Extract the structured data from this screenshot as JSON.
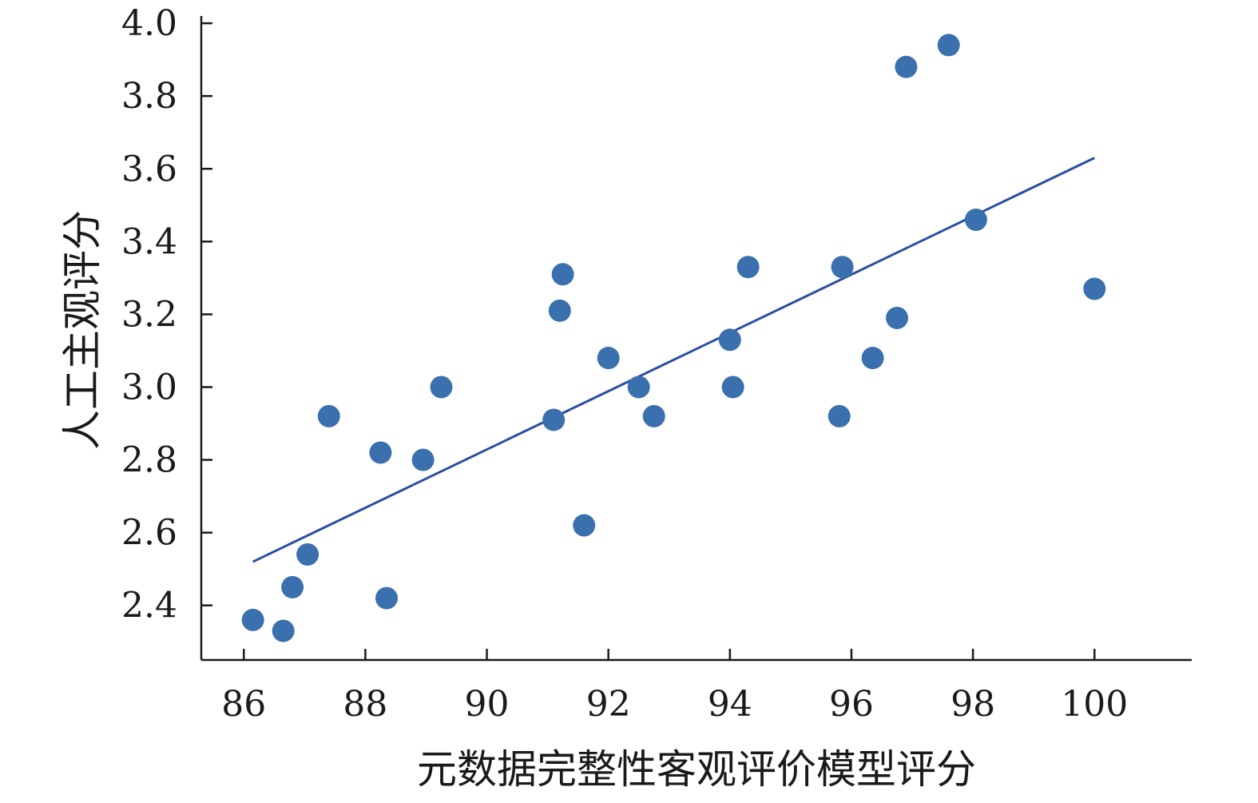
{
  "chart_data": {
    "type": "scatter",
    "xlabel": "元数据完整性客观评价模型评分",
    "ylabel": "人工主观评分",
    "xlim": [
      85.3,
      101.6
    ],
    "ylim": [
      2.25,
      4.02
    ],
    "x_ticks": [
      "86",
      "88",
      "90",
      "92",
      "94",
      "96",
      "98",
      "100"
    ],
    "y_ticks": [
      "2.4",
      "2.6",
      "2.8",
      "3.0",
      "3.2",
      "3.4",
      "3.6",
      "3.8",
      "4.0"
    ],
    "grid": false,
    "legend": "none",
    "colors": {
      "points": "#3a70ae",
      "trendline": "#2b4ea0",
      "axis": "#1a1a1a"
    },
    "series": [
      {
        "points": [
          {
            "x": 86.15,
            "y": 2.36
          },
          {
            "x": 86.65,
            "y": 2.33
          },
          {
            "x": 86.8,
            "y": 2.45
          },
          {
            "x": 87.05,
            "y": 2.54
          },
          {
            "x": 87.4,
            "y": 2.92
          },
          {
            "x": 88.25,
            "y": 2.82
          },
          {
            "x": 88.35,
            "y": 2.42
          },
          {
            "x": 88.95,
            "y": 2.8
          },
          {
            "x": 89.25,
            "y": 3.0
          },
          {
            "x": 91.1,
            "y": 2.91
          },
          {
            "x": 91.2,
            "y": 3.21
          },
          {
            "x": 91.25,
            "y": 3.31
          },
          {
            "x": 91.6,
            "y": 2.62
          },
          {
            "x": 92.0,
            "y": 3.08
          },
          {
            "x": 92.5,
            "y": 3.0
          },
          {
            "x": 92.75,
            "y": 2.92
          },
          {
            "x": 94.0,
            "y": 3.13
          },
          {
            "x": 94.05,
            "y": 3.0
          },
          {
            "x": 94.3,
            "y": 3.33
          },
          {
            "x": 95.8,
            "y": 2.92
          },
          {
            "x": 95.85,
            "y": 3.33
          },
          {
            "x": 96.35,
            "y": 3.08
          },
          {
            "x": 96.75,
            "y": 3.19
          },
          {
            "x": 96.9,
            "y": 3.88
          },
          {
            "x": 97.6,
            "y": 3.94
          },
          {
            "x": 98.05,
            "y": 3.46
          },
          {
            "x": 100.0,
            "y": 3.27
          }
        ]
      }
    ],
    "trendline": {
      "x": [
        86.15,
        100.0
      ],
      "y": [
        2.52,
        3.63
      ]
    }
  }
}
